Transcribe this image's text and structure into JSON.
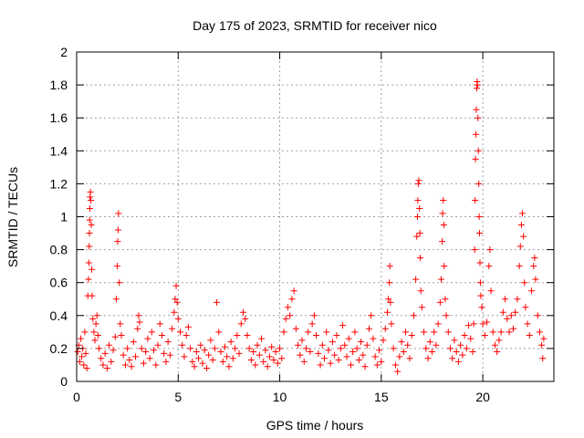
{
  "chart_data": {
    "type": "scatter",
    "title": "Day 175 of 2023, SRMTID for receiver nico",
    "xlabel": "GPS time / hours",
    "ylabel": "SRMTID / TECUs",
    "xlim": [
      0,
      23.5
    ],
    "ylim": [
      0,
      2
    ],
    "xticks": [
      0,
      5,
      10,
      15,
      20
    ],
    "xtick_labels": [
      "0",
      "5",
      "10",
      "15",
      "20"
    ],
    "yticks": [
      0,
      0.2,
      0.4,
      0.6,
      0.8,
      1,
      1.2,
      1.4,
      1.6,
      1.8,
      2
    ],
    "ytick_labels": [
      "0",
      "0.2",
      "0.4",
      "0.6",
      "0.8",
      "1",
      "1.2",
      "1.4",
      "1.6",
      "1.8",
      "2"
    ],
    "grid": true,
    "marker": "plus",
    "color": "#ff0000",
    "series": [
      {
        "name": "SRMTID",
        "points": [
          [
            0.05,
            0.18
          ],
          [
            0.1,
            0.22
          ],
          [
            0.15,
            0.12
          ],
          [
            0.2,
            0.26
          ],
          [
            0.25,
            0.15
          ],
          [
            0.3,
            0.2
          ],
          [
            0.35,
            0.1
          ],
          [
            0.4,
            0.3
          ],
          [
            0.45,
            0.17
          ],
          [
            0.5,
            0.08
          ],
          [
            0.55,
            0.52
          ],
          [
            0.58,
            0.62
          ],
          [
            0.6,
            0.72
          ],
          [
            0.62,
            0.82
          ],
          [
            0.63,
            0.9
          ],
          [
            0.64,
            0.98
          ],
          [
            0.65,
            1.05
          ],
          [
            0.66,
            1.12
          ],
          [
            0.68,
            1.15
          ],
          [
            0.7,
            1.1
          ],
          [
            0.72,
            0.95
          ],
          [
            0.74,
            0.68
          ],
          [
            0.76,
            0.52
          ],
          [
            0.8,
            0.38
          ],
          [
            0.85,
            0.3
          ],
          [
            0.9,
            0.25
          ],
          [
            0.95,
            0.35
          ],
          [
            1.0,
            0.4
          ],
          [
            1.05,
            0.28
          ],
          [
            1.1,
            0.2
          ],
          [
            1.2,
            0.14
          ],
          [
            1.3,
            0.1
          ],
          [
            1.4,
            0.17
          ],
          [
            1.5,
            0.08
          ],
          [
            1.6,
            0.22
          ],
          [
            1.7,
            0.12
          ],
          [
            1.8,
            0.19
          ],
          [
            1.9,
            0.27
          ],
          [
            1.95,
            0.5
          ],
          [
            2.0,
            0.7
          ],
          [
            2.02,
            0.85
          ],
          [
            2.04,
            0.92
          ],
          [
            2.06,
            1.02
          ],
          [
            2.1,
            0.6
          ],
          [
            2.15,
            0.35
          ],
          [
            2.2,
            0.28
          ],
          [
            2.3,
            0.16
          ],
          [
            2.4,
            0.1
          ],
          [
            2.5,
            0.2
          ],
          [
            2.6,
            0.13
          ],
          [
            2.7,
            0.09
          ],
          [
            2.8,
            0.24
          ],
          [
            2.9,
            0.15
          ],
          [
            3.0,
            0.32
          ],
          [
            3.05,
            0.4
          ],
          [
            3.1,
            0.36
          ],
          [
            3.2,
            0.2
          ],
          [
            3.3,
            0.11
          ],
          [
            3.4,
            0.18
          ],
          [
            3.5,
            0.26
          ],
          [
            3.6,
            0.14
          ],
          [
            3.7,
            0.3
          ],
          [
            3.8,
            0.19
          ],
          [
            3.9,
            0.1
          ],
          [
            4.0,
            0.22
          ],
          [
            4.1,
            0.35
          ],
          [
            4.2,
            0.28
          ],
          [
            4.3,
            0.17
          ],
          [
            4.4,
            0.12
          ],
          [
            4.5,
            0.24
          ],
          [
            4.6,
            0.16
          ],
          [
            4.7,
            0.32
          ],
          [
            4.8,
            0.42
          ],
          [
            4.85,
            0.5
          ],
          [
            4.9,
            0.58
          ],
          [
            4.95,
            0.48
          ],
          [
            5.0,
            0.38
          ],
          [
            5.1,
            0.3
          ],
          [
            5.2,
            0.22
          ],
          [
            5.3,
            0.15
          ],
          [
            5.4,
            0.28
          ],
          [
            5.5,
            0.33
          ],
          [
            5.6,
            0.2
          ],
          [
            5.7,
            0.12
          ],
          [
            5.8,
            0.09
          ],
          [
            5.9,
            0.18
          ],
          [
            6.0,
            0.14
          ],
          [
            6.1,
            0.22
          ],
          [
            6.2,
            0.11
          ],
          [
            6.3,
            0.19
          ],
          [
            6.4,
            0.08
          ],
          [
            6.5,
            0.16
          ],
          [
            6.6,
            0.25
          ],
          [
            6.7,
            0.13
          ],
          [
            6.8,
            0.2
          ],
          [
            6.9,
            0.48
          ],
          [
            7.0,
            0.3
          ],
          [
            7.1,
            0.18
          ],
          [
            7.2,
            0.12
          ],
          [
            7.3,
            0.21
          ],
          [
            7.4,
            0.15
          ],
          [
            7.5,
            0.09
          ],
          [
            7.6,
            0.24
          ],
          [
            7.7,
            0.14
          ],
          [
            7.8,
            0.2
          ],
          [
            7.9,
            0.28
          ],
          [
            8.0,
            0.17
          ],
          [
            8.1,
            0.35
          ],
          [
            8.2,
            0.42
          ],
          [
            8.3,
            0.38
          ],
          [
            8.4,
            0.28
          ],
          [
            8.5,
            0.2
          ],
          [
            8.6,
            0.13
          ],
          [
            8.7,
            0.18
          ],
          [
            8.8,
            0.1
          ],
          [
            8.9,
            0.22
          ],
          [
            9.0,
            0.16
          ],
          [
            9.1,
            0.26
          ],
          [
            9.2,
            0.12
          ],
          [
            9.3,
            0.19
          ],
          [
            9.4,
            0.09
          ],
          [
            9.5,
            0.15
          ],
          [
            9.6,
            0.21
          ],
          [
            9.7,
            0.13
          ],
          [
            9.8,
            0.18
          ],
          [
            9.9,
            0.11
          ],
          [
            10.0,
            0.2
          ],
          [
            10.1,
            0.14
          ],
          [
            10.2,
            0.3
          ],
          [
            10.3,
            0.38
          ],
          [
            10.4,
            0.45
          ],
          [
            10.5,
            0.4
          ],
          [
            10.6,
            0.5
          ],
          [
            10.7,
            0.55
          ],
          [
            10.8,
            0.32
          ],
          [
            10.9,
            0.22
          ],
          [
            11.0,
            0.16
          ],
          [
            11.1,
            0.25
          ],
          [
            11.2,
            0.12
          ],
          [
            11.3,
            0.2
          ],
          [
            11.4,
            0.3
          ],
          [
            11.5,
            0.18
          ],
          [
            11.6,
            0.35
          ],
          [
            11.7,
            0.4
          ],
          [
            11.8,
            0.28
          ],
          [
            11.9,
            0.17
          ],
          [
            12.0,
            0.1
          ],
          [
            12.1,
            0.22
          ],
          [
            12.2,
            0.14
          ],
          [
            12.3,
            0.3
          ],
          [
            12.4,
            0.19
          ],
          [
            12.5,
            0.11
          ],
          [
            12.6,
            0.24
          ],
          [
            12.7,
            0.16
          ],
          [
            12.8,
            0.28
          ],
          [
            12.9,
            0.13
          ],
          [
            13.0,
            0.2
          ],
          [
            13.1,
            0.34
          ],
          [
            13.2,
            0.22
          ],
          [
            13.3,
            0.15
          ],
          [
            13.4,
            0.26
          ],
          [
            13.5,
            0.1
          ],
          [
            13.6,
            0.18
          ],
          [
            13.7,
            0.3
          ],
          [
            13.8,
            0.2
          ],
          [
            13.9,
            0.13
          ],
          [
            14.0,
            0.24
          ],
          [
            14.1,
            0.16
          ],
          [
            14.2,
            0.09
          ],
          [
            14.3,
            0.22
          ],
          [
            14.4,
            0.32
          ],
          [
            14.5,
            0.4
          ],
          [
            14.6,
            0.26
          ],
          [
            14.7,
            0.15
          ],
          [
            14.8,
            0.1
          ],
          [
            14.9,
            0.19
          ],
          [
            15.0,
            0.12
          ],
          [
            15.1,
            0.25
          ],
          [
            15.2,
            0.32
          ],
          [
            15.3,
            0.42
          ],
          [
            15.35,
            0.5
          ],
          [
            15.4,
            0.6
          ],
          [
            15.42,
            0.7
          ],
          [
            15.45,
            0.48
          ],
          [
            15.5,
            0.35
          ],
          [
            15.6,
            0.2
          ],
          [
            15.7,
            0.1
          ],
          [
            15.8,
            0.06
          ],
          [
            15.9,
            0.15
          ],
          [
            16.0,
            0.24
          ],
          [
            16.1,
            0.18
          ],
          [
            16.2,
            0.3
          ],
          [
            16.3,
            0.22
          ],
          [
            16.4,
            0.14
          ],
          [
            16.5,
            0.28
          ],
          [
            16.6,
            0.4
          ],
          [
            16.7,
            0.62
          ],
          [
            16.75,
            0.88
          ],
          [
            16.78,
            1.0
          ],
          [
            16.8,
            1.1
          ],
          [
            16.82,
            1.2
          ],
          [
            16.85,
            1.22
          ],
          [
            16.88,
            1.05
          ],
          [
            16.9,
            0.9
          ],
          [
            16.92,
            0.75
          ],
          [
            16.95,
            0.55
          ],
          [
            17.0,
            0.45
          ],
          [
            17.1,
            0.3
          ],
          [
            17.2,
            0.2
          ],
          [
            17.3,
            0.14
          ],
          [
            17.4,
            0.24
          ],
          [
            17.5,
            0.18
          ],
          [
            17.6,
            0.3
          ],
          [
            17.7,
            0.22
          ],
          [
            17.8,
            0.35
          ],
          [
            17.9,
            0.48
          ],
          [
            17.95,
            0.62
          ],
          [
            18.0,
            0.85
          ],
          [
            18.02,
            1.02
          ],
          [
            18.05,
            1.1
          ],
          [
            18.08,
            0.95
          ],
          [
            18.1,
            0.7
          ],
          [
            18.15,
            0.5
          ],
          [
            18.2,
            0.4
          ],
          [
            18.3,
            0.3
          ],
          [
            18.4,
            0.2
          ],
          [
            18.5,
            0.14
          ],
          [
            18.6,
            0.25
          ],
          [
            18.7,
            0.18
          ],
          [
            18.8,
            0.12
          ],
          [
            18.9,
            0.22
          ],
          [
            19.0,
            0.16
          ],
          [
            19.1,
            0.28
          ],
          [
            19.2,
            0.2
          ],
          [
            19.3,
            0.34
          ],
          [
            19.4,
            0.26
          ],
          [
            19.5,
            0.18
          ],
          [
            19.55,
            0.35
          ],
          [
            19.6,
            0.8
          ],
          [
            19.62,
            1.1
          ],
          [
            19.64,
            1.35
          ],
          [
            19.66,
            1.5
          ],
          [
            19.68,
            1.65
          ],
          [
            19.7,
            1.78
          ],
          [
            19.72,
            1.82
          ],
          [
            19.74,
            1.8
          ],
          [
            19.76,
            1.6
          ],
          [
            19.78,
            1.4
          ],
          [
            19.8,
            1.2
          ],
          [
            19.82,
            1.0
          ],
          [
            19.84,
            0.9
          ],
          [
            19.86,
            0.72
          ],
          [
            19.88,
            0.6
          ],
          [
            19.9,
            0.52
          ],
          [
            19.95,
            0.45
          ],
          [
            20.0,
            0.35
          ],
          [
            20.1,
            0.28
          ],
          [
            20.2,
            0.36
          ],
          [
            20.3,
            0.7
          ],
          [
            20.35,
            0.8
          ],
          [
            20.4,
            0.55
          ],
          [
            20.5,
            0.3
          ],
          [
            20.6,
            0.22
          ],
          [
            20.7,
            0.18
          ],
          [
            20.8,
            0.25
          ],
          [
            20.9,
            0.3
          ],
          [
            21.0,
            0.42
          ],
          [
            21.1,
            0.5
          ],
          [
            21.2,
            0.38
          ],
          [
            21.3,
            0.3
          ],
          [
            21.4,
            0.4
          ],
          [
            21.5,
            0.32
          ],
          [
            21.6,
            0.42
          ],
          [
            21.7,
            0.5
          ],
          [
            21.8,
            0.7
          ],
          [
            21.85,
            0.82
          ],
          [
            21.9,
            0.95
          ],
          [
            21.95,
            1.02
          ],
          [
            22.0,
            0.88
          ],
          [
            22.05,
            0.6
          ],
          [
            22.1,
            0.45
          ],
          [
            22.2,
            0.35
          ],
          [
            22.3,
            0.28
          ],
          [
            22.4,
            0.55
          ],
          [
            22.5,
            0.7
          ],
          [
            22.55,
            0.75
          ],
          [
            22.6,
            0.62
          ],
          [
            22.7,
            0.4
          ],
          [
            22.8,
            0.3
          ],
          [
            22.9,
            0.22
          ],
          [
            22.95,
            0.14
          ],
          [
            23.0,
            0.26
          ]
        ]
      }
    ]
  }
}
